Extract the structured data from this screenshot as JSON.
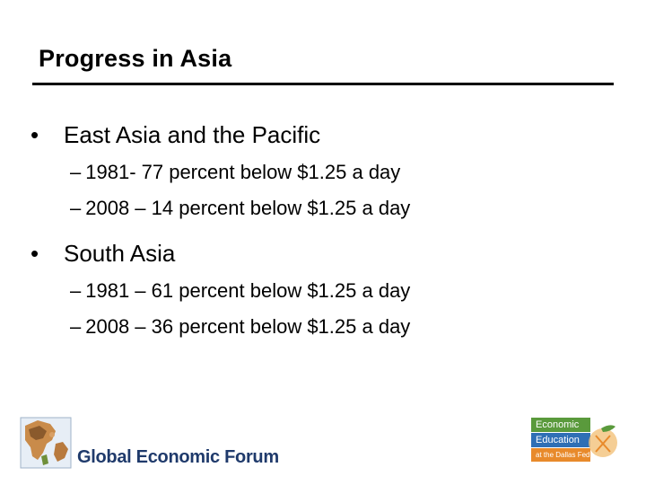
{
  "slide": {
    "title": "Progress in Asia",
    "bullets": [
      {
        "marker": "•",
        "text": "East Asia and the Pacific",
        "subitems": [
          {
            "marker": "–",
            "text": "1981- 77 percent below $1.25 a day"
          },
          {
            "marker": "–",
            "text": "2008 – 14 percent below $1.25 a day"
          }
        ]
      },
      {
        "marker": "•",
        "text": "South Asia",
        "subitems": [
          {
            "marker": "–",
            "text": "1981 – 61 percent below $1.25 a day"
          },
          {
            "marker": "–",
            "text": "2008 – 36 percent below $1.25 a day"
          }
        ]
      }
    ]
  },
  "footer": {
    "left_logo_text": "Global Economic Forum",
    "right_logo_lines": [
      "Economic",
      "Education",
      "at the Dallas Fed"
    ]
  },
  "colors": {
    "gef_blue": "#1f3a6b",
    "ee_green": "#5a9a3c",
    "ee_blue": "#2f6fb5",
    "ee_orange": "#e88a2b"
  }
}
